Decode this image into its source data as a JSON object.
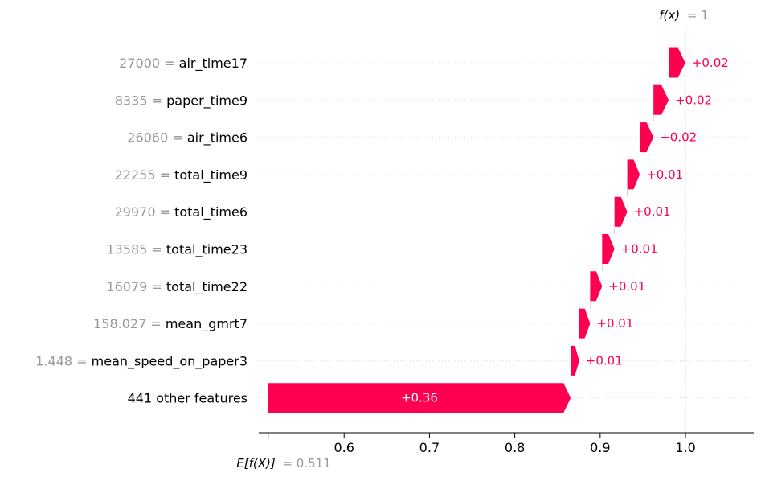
{
  "chart_data": {
    "type": "waterfall",
    "title": "",
    "xlabel": "",
    "ylabel": "",
    "xlim": [
      0.5,
      1.08
    ],
    "base_value": 0.511,
    "base_label": "E[f(X)]",
    "base_value_text": "= 0.511",
    "output_value": 1,
    "output_label": "f(x)",
    "output_value_text": "= 1",
    "x_ticks": [
      0.6,
      0.7,
      0.8,
      0.9,
      1.0
    ],
    "x_tick_labels": [
      "0.6",
      "0.7",
      "0.8",
      "0.9",
      "1.0"
    ],
    "positive_color": "#ff0051",
    "features": [
      {
        "value": "27000",
        "name": "air_time17",
        "label": "+0.02",
        "start": 0.9803,
        "end": 0.9998
      },
      {
        "value": "8335",
        "name": "paper_time9",
        "label": "+0.02",
        "start": 0.9625,
        "end": 0.9803
      },
      {
        "value": "26060",
        "name": "air_time6",
        "label": "+0.02",
        "start": 0.9465,
        "end": 0.9625
      },
      {
        "value": "22255",
        "name": "total_time9",
        "label": "+0.01",
        "start": 0.9318,
        "end": 0.9465
      },
      {
        "value": "29970",
        "name": "total_time6",
        "label": "+0.01",
        "start": 0.9168,
        "end": 0.9318
      },
      {
        "value": "13585",
        "name": "total_time23",
        "label": "+0.01",
        "start": 0.9023,
        "end": 0.9168
      },
      {
        "value": "16079",
        "name": "total_time22",
        "label": "+0.01",
        "start": 0.8883,
        "end": 0.9023
      },
      {
        "value": "158.027",
        "name": "mean_gmrt7",
        "label": "+0.01",
        "start": 0.8755,
        "end": 0.8883
      },
      {
        "value": "1.448",
        "name": "mean_speed_on_paper3",
        "label": "+0.01",
        "start": 0.8655,
        "end": 0.8755
      },
      {
        "value": "",
        "name": "441 other features",
        "label": "+0.36",
        "start": 0.511,
        "end": 0.8655
      }
    ]
  }
}
